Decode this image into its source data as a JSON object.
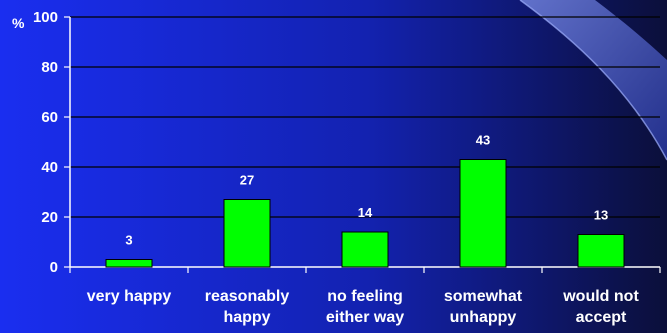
{
  "chart_data": {
    "type": "bar",
    "categories": [
      [
        "very happy"
      ],
      [
        "reasonably",
        "happy"
      ],
      [
        "no feeling",
        "either way"
      ],
      [
        "somewhat",
        "unhappy"
      ],
      [
        "would not",
        "accept"
      ]
    ],
    "values": [
      3,
      27,
      14,
      43,
      13
    ],
    "data_labels": [
      "3",
      "27",
      "14",
      "43",
      "13"
    ],
    "ylabel": "%",
    "ylim": [
      0,
      100
    ],
    "yticks": [
      0,
      20,
      40,
      60,
      80,
      100
    ],
    "grid": true,
    "legend": "none"
  },
  "colors": {
    "background_left": "#1a2ef0",
    "background_right": "#0b0f3a",
    "bar_fill": "#00ff00",
    "bar_stroke": "#000000",
    "axis": "#ffffff",
    "gridline": "#000000",
    "text": "#ffffff"
  }
}
